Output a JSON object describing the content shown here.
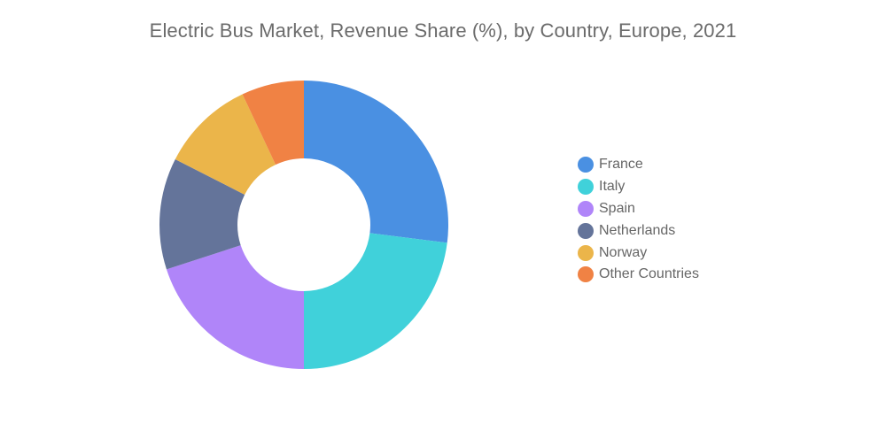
{
  "chart_data": {
    "type": "pie",
    "title": "Electric Bus Market, Revenue Share (%), by Country, Europe, 2021",
    "categories": [
      "France",
      "Italy",
      "Spain",
      "Netherlands",
      "Norway",
      "Other Countries"
    ],
    "values": [
      27,
      23,
      20,
      12.5,
      10.5,
      7
    ],
    "colors": [
      "#4a90e2",
      "#40d1da",
      "#b085f9",
      "#64749a",
      "#ebb54a",
      "#f08244"
    ],
    "legend_position": "right"
  }
}
